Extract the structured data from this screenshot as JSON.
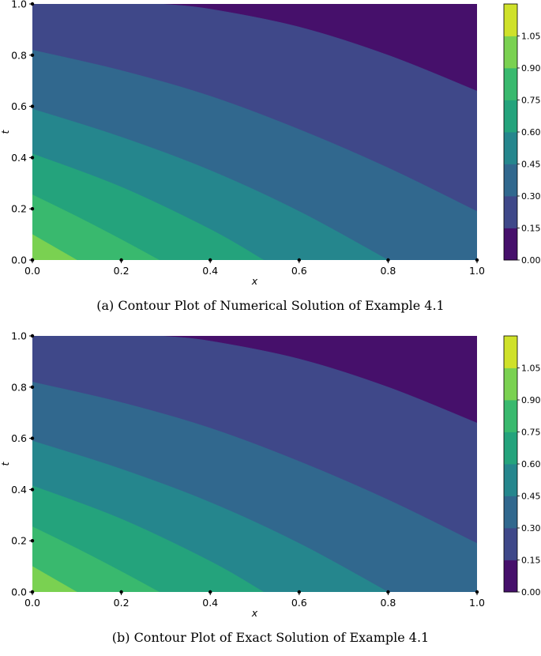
{
  "levels": [
    0.0,
    0.15,
    0.3,
    0.45,
    0.6,
    0.75,
    0.9,
    1.05
  ],
  "colorbar_labels": [
    "0.00",
    "0.15",
    "0.30",
    "0.45",
    "0.60",
    "0.75",
    "0.90",
    "1.05"
  ],
  "level_colors": [
    "#46106b",
    "#3f4889",
    "#31688e",
    "#25868d",
    "#24a37c",
    "#39b96e",
    "#7ad151",
    "#cfe12a"
  ],
  "panels": [
    {
      "caption": "(a)  Contour Plot of Numerical Solution of Example 4.1"
    },
    {
      "caption": "(b)  Contour Plot of Exact Solution of Example 4.1"
    }
  ],
  "chart_data": [
    {
      "type": "contour",
      "title": "",
      "xlabel": "x",
      "ylabel": "t",
      "xlim": [
        0.0,
        1.0
      ],
      "ylim": [
        0.0,
        1.0
      ],
      "x_ticks": [
        "0.0",
        "0.2",
        "0.4",
        "0.6",
        "0.8",
        "1.0"
      ],
      "y_ticks": [
        "0.0",
        "0.2",
        "0.4",
        "0.6",
        "0.8",
        "1.0"
      ],
      "levels": [
        0.0,
        0.15,
        0.3,
        0.45,
        0.6,
        0.75,
        0.9,
        1.05
      ],
      "colormap": "viridis",
      "colorbar": true,
      "contour_lines": [
        {
          "level": 0.9,
          "x": [
            0.0,
            0.1
          ],
          "y": [
            0.1,
            0.0
          ]
        },
        {
          "level": 0.75,
          "x": [
            0.0,
            0.1,
            0.2,
            0.285
          ],
          "y": [
            0.255,
            0.17,
            0.08,
            0.0
          ]
        },
        {
          "level": 0.6,
          "x": [
            0.0,
            0.2,
            0.4,
            0.52
          ],
          "y": [
            0.415,
            0.285,
            0.12,
            0.0
          ]
        },
        {
          "level": 0.45,
          "x": [
            0.0,
            0.2,
            0.4,
            0.6,
            0.8
          ],
          "y": [
            0.59,
            0.48,
            0.35,
            0.19,
            0.0
          ]
        },
        {
          "level": 0.3,
          "x": [
            0.0,
            0.2,
            0.4,
            0.6,
            0.8,
            1.0
          ],
          "y": [
            0.82,
            0.74,
            0.64,
            0.51,
            0.36,
            0.19
          ]
        },
        {
          "level": 0.15,
          "x": [
            0.29,
            0.4,
            0.6,
            0.8,
            1.0
          ],
          "y": [
            1.0,
            0.98,
            0.91,
            0.8,
            0.66
          ]
        }
      ]
    },
    {
      "type": "contour",
      "title": "",
      "xlabel": "x",
      "ylabel": "t",
      "xlim": [
        0.0,
        1.0
      ],
      "ylim": [
        0.0,
        1.0
      ],
      "x_ticks": [
        "0.0",
        "0.2",
        "0.4",
        "0.6",
        "0.8",
        "1.0"
      ],
      "y_ticks": [
        "0.0",
        "0.2",
        "0.4",
        "0.6",
        "0.8",
        "1.0"
      ],
      "levels": [
        0.0,
        0.15,
        0.3,
        0.45,
        0.6,
        0.75,
        0.9,
        1.05
      ],
      "colormap": "viridis",
      "colorbar": true,
      "contour_lines": [
        {
          "level": 0.9,
          "x": [
            0.0,
            0.1
          ],
          "y": [
            0.1,
            0.0
          ]
        },
        {
          "level": 0.75,
          "x": [
            0.0,
            0.1,
            0.2,
            0.285
          ],
          "y": [
            0.255,
            0.17,
            0.08,
            0.0
          ]
        },
        {
          "level": 0.6,
          "x": [
            0.0,
            0.2,
            0.4,
            0.52
          ],
          "y": [
            0.415,
            0.285,
            0.12,
            0.0
          ]
        },
        {
          "level": 0.45,
          "x": [
            0.0,
            0.2,
            0.4,
            0.6,
            0.8
          ],
          "y": [
            0.59,
            0.48,
            0.35,
            0.19,
            0.0
          ]
        },
        {
          "level": 0.3,
          "x": [
            0.0,
            0.2,
            0.4,
            0.6,
            0.8,
            1.0
          ],
          "y": [
            0.82,
            0.74,
            0.64,
            0.51,
            0.36,
            0.19
          ]
        },
        {
          "level": 0.15,
          "x": [
            0.29,
            0.4,
            0.6,
            0.8,
            1.0
          ],
          "y": [
            1.0,
            0.98,
            0.91,
            0.8,
            0.66
          ]
        }
      ]
    }
  ]
}
